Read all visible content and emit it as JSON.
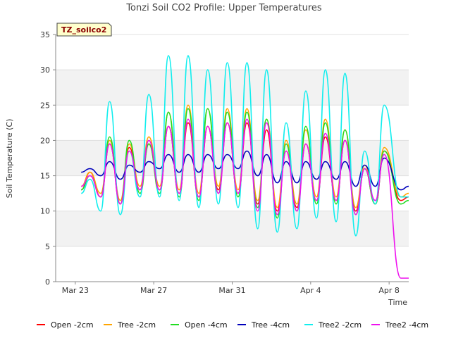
{
  "chart_data": {
    "type": "line",
    "title": "Tonzi Soil CO2 Profile: Upper Temperatures",
    "xlabel": "Time",
    "ylabel": "Soil Temperature (C)",
    "site_tag": "TZ_soilco2",
    "xlim": [
      -1,
      17
    ],
    "ylim": [
      0,
      35
    ],
    "x_ticks": [
      {
        "value": 0,
        "label": "Mar 23"
      },
      {
        "value": 4,
        "label": "Mar 27"
      },
      {
        "value": 8,
        "label": "Mar 31"
      },
      {
        "value": 12,
        "label": "Apr 4"
      },
      {
        "value": 16,
        "label": "Apr 8"
      }
    ],
    "y_ticks": [
      0,
      5,
      10,
      15,
      20,
      25,
      30,
      35
    ],
    "grid": "horizontal bands",
    "legend_position": "bottom",
    "series_meta": [
      {
        "name": "Open -2cm",
        "color": "#ff0000"
      },
      {
        "name": "Tree -2cm",
        "color": "#ffa500"
      },
      {
        "name": "Open -4cm",
        "color": "#22dd22"
      },
      {
        "name": "Tree -4cm",
        "color": "#0000bb"
      },
      {
        "name": "Tree2 -2cm",
        "color": "#11eeee"
      },
      {
        "name": "Tree2 -4cm",
        "color": "#ee11ee"
      }
    ],
    "daily_peaks": {
      "days": [
        0.75,
        1.75,
        2.75,
        3.75,
        4.75,
        5.75,
        6.75,
        7.75,
        8.75,
        9.75,
        10.75,
        11.75,
        12.75,
        13.75,
        14.75,
        15.75
      ],
      "Open -2cm": [
        15.5,
        19.5,
        19.0,
        19.5,
        22.0,
        22.5,
        22.0,
        22.5,
        22.5,
        21.5,
        18.5,
        19.5,
        20.5,
        20.0,
        16.0,
        18.5
      ],
      "Tree -2cm": [
        15.5,
        20.0,
        19.5,
        20.5,
        24.0,
        25.0,
        24.5,
        24.5,
        24.5,
        23.0,
        20.0,
        21.5,
        23.0,
        21.5,
        16.5,
        19.0
      ],
      "Open -4cm": [
        15.0,
        20.5,
        20.0,
        19.5,
        24.0,
        24.5,
        24.5,
        24.0,
        24.0,
        23.0,
        19.5,
        22.0,
        22.5,
        21.5,
        16.0,
        18.5
      ],
      "Tree -4cm": [
        16.0,
        17.0,
        16.5,
        17.0,
        18.0,
        18.0,
        18.0,
        18.0,
        18.5,
        18.0,
        17.0,
        17.0,
        17.0,
        17.0,
        16.5,
        17.5
      ],
      "Tree2 -2cm": [
        14.5,
        25.5,
        18.5,
        26.5,
        32.0,
        32.0,
        30.0,
        31.0,
        31.0,
        30.0,
        22.5,
        27.0,
        30.0,
        29.5,
        18.5,
        25.0
      ],
      "Tree2 -4cm": [
        15.0,
        19.5,
        18.5,
        20.0,
        22.0,
        23.0,
        22.0,
        22.5,
        23.0,
        22.5,
        18.5,
        19.5,
        21.0,
        20.0,
        16.0,
        18.0
      ]
    },
    "daily_minimums": {
      "days": [
        0.3,
        1.3,
        2.3,
        3.3,
        4.3,
        5.3,
        6.3,
        7.3,
        8.3,
        9.3,
        10.3,
        11.3,
        12.3,
        13.3,
        14.3,
        15.3
      ],
      "Open -2cm": [
        13.0,
        12.0,
        11.0,
        13.0,
        13.0,
        12.5,
        12.0,
        13.0,
        12.5,
        11.0,
        10.0,
        10.5,
        11.5,
        11.5,
        10.0,
        11.0
      ],
      "Tree -2cm": [
        13.5,
        12.5,
        11.5,
        13.5,
        13.5,
        13.0,
        12.5,
        13.5,
        13.0,
        11.5,
        10.5,
        11.0,
        12.0,
        12.0,
        10.5,
        11.0
      ],
      "Open -4cm": [
        13.0,
        12.0,
        11.0,
        12.5,
        12.5,
        12.0,
        11.5,
        12.5,
        12.0,
        10.5,
        9.0,
        10.0,
        11.0,
        11.0,
        9.5,
        11.0
      ],
      "Tree -4cm": [
        15.5,
        15.0,
        14.5,
        15.5,
        16.0,
        15.5,
        15.5,
        16.0,
        16.0,
        15.0,
        14.0,
        14.0,
        14.5,
        14.5,
        13.5,
        13.5
      ],
      "Tree2 -2cm": [
        12.5,
        10.0,
        9.5,
        12.0,
        12.0,
        11.5,
        10.5,
        11.0,
        10.5,
        7.5,
        7.0,
        7.5,
        9.0,
        8.5,
        6.5,
        11.0
      ],
      "Tree2 -4cm": [
        13.5,
        12.0,
        11.0,
        13.0,
        13.0,
        12.5,
        12.0,
        12.5,
        12.5,
        10.0,
        9.5,
        10.0,
        11.5,
        11.5,
        9.5,
        11.5
      ]
    },
    "end_values": {
      "x": [
        16.6,
        17.0
      ],
      "Open -2cm": [
        11.5,
        12.0
      ],
      "Tree -2cm": [
        12.0,
        12.5
      ],
      "Open -4cm": [
        11.0,
        11.5
      ],
      "Tree -4cm": [
        13.0,
        13.5
      ],
      "Tree2 -2cm": [
        12.0,
        12.0
      ],
      "Tree2 -4cm": [
        0.5,
        0.5
      ]
    }
  }
}
